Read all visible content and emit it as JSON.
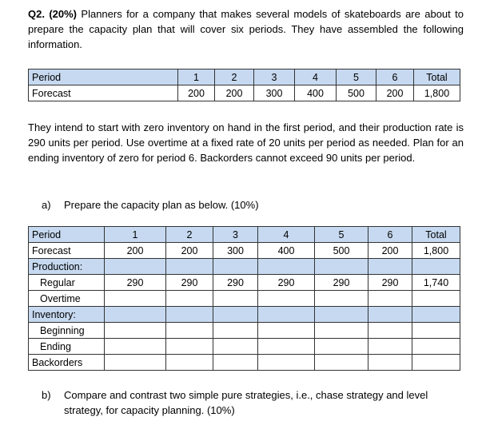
{
  "question": {
    "number": "Q2. (20%)",
    "text": "Planners for a company that makes several models of skateboards are about to prepare the capacity plan that will cover six periods. They have assembled the following information."
  },
  "table1": {
    "header": [
      "Period",
      "1",
      "2",
      "3",
      "4",
      "5",
      "6",
      "Total"
    ],
    "rows": [
      [
        "Forecast",
        "200",
        "200",
        "300",
        "400",
        "500",
        "200",
        "1,800"
      ]
    ]
  },
  "paragraph": "They intend to start with zero inventory on hand in the first period, and their production rate is 290 units per period. Use overtime at a fixed rate of 20 units per period as needed. Plan for an ending inventory of zero for period 6. Backorders cannot exceed 90 units per period.",
  "part_a": {
    "label": "a)",
    "text": "Prepare the capacity plan as below. (10%)"
  },
  "table2": {
    "header": [
      "Period",
      "1",
      "2",
      "3",
      "4",
      "5",
      "6",
      "Total"
    ],
    "rows": [
      {
        "label": "Forecast",
        "cells": [
          "200",
          "200",
          "300",
          "400",
          "500",
          "200",
          "1,800"
        ]
      },
      {
        "label": "Production:",
        "section": true
      },
      {
        "label": "Regular",
        "indent": true,
        "cells": [
          "290",
          "290",
          "290",
          "290",
          "290",
          "290",
          "1,740"
        ]
      },
      {
        "label": "Overtime",
        "indent": true
      },
      {
        "label": "Inventory:",
        "section": true
      },
      {
        "label": "Beginning",
        "indent": true
      },
      {
        "label": "Ending",
        "indent": true
      },
      {
        "label": "Backorders"
      }
    ]
  },
  "part_b": {
    "label": "b)",
    "text": "Compare and contrast two simple pure strategies, i.e., chase strategy and level strategy, for capacity planning. (10%)"
  }
}
